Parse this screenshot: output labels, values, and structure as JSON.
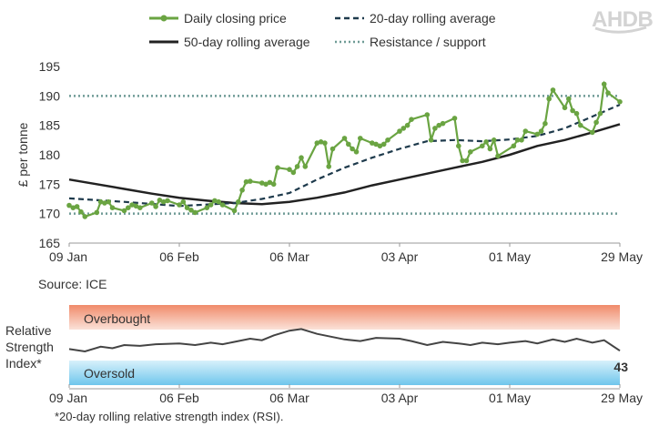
{
  "brand": {
    "name": "AHDB"
  },
  "legend": [
    {
      "key": "daily",
      "label": "Daily closing price"
    },
    {
      "key": "ma20",
      "label": "20-day rolling average"
    },
    {
      "key": "ma50",
      "label": "50-day rolling average"
    },
    {
      "key": "level",
      "label": "Resistance / support"
    }
  ],
  "colors": {
    "daily": "#6aa442",
    "ma20": "#1e3a4c",
    "ma50": "#222222",
    "level": "#6f9b96",
    "rsi": "#444444",
    "overbought": "#f1a58a",
    "oversold": "#8ed2f0"
  },
  "source": "Source: ICE",
  "footnote": "*20-day rolling relative strength index (RSI).",
  "chart_data": [
    {
      "type": "line",
      "ylabel": "£ per tonne",
      "ylim": [
        165,
        195
      ],
      "yticks": [
        "165",
        "170",
        "175",
        "180",
        "185",
        "190",
        "195"
      ],
      "xlim": [
        "09 Jan",
        "29 May"
      ],
      "xticks": [
        "09 Jan",
        "06 Feb",
        "06 Mar",
        "03 Apr",
        "01 May",
        "29 May"
      ],
      "grid": false,
      "legend_position": "top",
      "resistance_support": [
        170,
        190
      ],
      "series": [
        {
          "name": "Daily closing price",
          "points": [
            [
              "09 Jan",
              171.4
            ],
            [
              "10 Jan",
              171
            ],
            [
              "11 Jan",
              171.2
            ],
            [
              "12 Jan",
              170.3
            ],
            [
              "13 Jan",
              169.5
            ],
            [
              "16 Jan",
              170.2
            ],
            [
              "17 Jan",
              172
            ],
            [
              "18 Jan",
              171.8
            ],
            [
              "19 Jan",
              172
            ],
            [
              "20 Jan",
              171
            ],
            [
              "23 Jan",
              170.5
            ],
            [
              "24 Jan",
              171
            ],
            [
              "25 Jan",
              171.5
            ],
            [
              "26 Jan",
              171.3
            ],
            [
              "27 Jan",
              171
            ],
            [
              "30 Jan",
              171.8
            ],
            [
              "31 Jan",
              171.2
            ],
            [
              "01 Feb",
              172.3
            ],
            [
              "02 Feb",
              172
            ],
            [
              "03 Feb",
              172.2
            ],
            [
              "06 Feb",
              171.5
            ],
            [
              "07 Feb",
              172
            ],
            [
              "08 Feb",
              171
            ],
            [
              "09 Feb",
              170.6
            ],
            [
              "10 Feb",
              170.2
            ],
            [
              "13 Feb",
              171
            ],
            [
              "14 Feb",
              171.5
            ],
            [
              "15 Feb",
              172.2
            ],
            [
              "16 Feb",
              172
            ],
            [
              "17 Feb",
              171.5
            ],
            [
              "20 Feb",
              170.5
            ],
            [
              "21 Feb",
              172
            ],
            [
              "22 Feb",
              174
            ],
            [
              "23 Feb",
              175.4
            ],
            [
              "24 Feb",
              175.5
            ],
            [
              "27 Feb",
              175.2
            ],
            [
              "28 Feb",
              175
            ],
            [
              "01 Mar",
              175.3
            ],
            [
              "02 Mar",
              175
            ],
            [
              "03 Mar",
              177.8
            ],
            [
              "06 Mar",
              177.5
            ],
            [
              "07 Mar",
              177
            ],
            [
              "08 Mar",
              178
            ],
            [
              "09 Mar",
              179.5
            ],
            [
              "10 Mar",
              178
            ],
            [
              "13 Mar",
              182
            ],
            [
              "14 Mar",
              182.2
            ],
            [
              "15 Mar",
              182
            ],
            [
              "16 Mar",
              178
            ],
            [
              "17 Mar",
              181
            ],
            [
              "20 Mar",
              182.8
            ],
            [
              "21 Mar",
              181.8
            ],
            [
              "22 Mar",
              181
            ],
            [
              "23 Mar",
              180.5
            ],
            [
              "24 Mar",
              182.8
            ],
            [
              "27 Mar",
              182
            ],
            [
              "28 Mar",
              181.8
            ],
            [
              "29 Mar",
              181.5
            ],
            [
              "30 Mar",
              181.8
            ],
            [
              "31 Mar",
              182.5
            ],
            [
              "03 Apr",
              184
            ],
            [
              "04 Apr",
              184.5
            ],
            [
              "05 Apr",
              185
            ],
            [
              "06 Apr",
              186
            ],
            [
              "10 Apr",
              186.8
            ],
            [
              "11 Apr",
              182.5
            ],
            [
              "12 Apr",
              184.5
            ],
            [
              "13 Apr",
              185
            ],
            [
              "14 Apr",
              185.3
            ],
            [
              "17 Apr",
              186.2
            ],
            [
              "18 Apr",
              181.5
            ],
            [
              "19 Apr",
              179
            ],
            [
              "20 Apr",
              179
            ],
            [
              "21 Apr",
              180.5
            ],
            [
              "24 Apr",
              181.5
            ],
            [
              "25 Apr",
              182.2
            ],
            [
              "26 Apr",
              181
            ],
            [
              "27 Apr",
              182.5
            ],
            [
              "28 Apr",
              179.8
            ],
            [
              "02 May",
              181.5
            ],
            [
              "03 May",
              182.5
            ],
            [
              "04 May",
              182.5
            ],
            [
              "05 May",
              184
            ],
            [
              "08 May",
              183.5
            ],
            [
              "09 May",
              184
            ],
            [
              "10 May",
              185.3
            ],
            [
              "11 May",
              189.5
            ],
            [
              "12 May",
              191
            ],
            [
              "15 May",
              188
            ],
            [
              "16 May",
              189.5
            ],
            [
              "17 May",
              187.5
            ],
            [
              "18 May",
              187
            ],
            [
              "19 May",
              185
            ],
            [
              "22 May",
              183.8
            ],
            [
              "23 May",
              185.5
            ],
            [
              "24 May",
              187
            ],
            [
              "25 May",
              192
            ],
            [
              "26 May",
              190.5
            ],
            [
              "29 May",
              189
            ]
          ]
        },
        {
          "name": "20-day rolling average",
          "points": [
            [
              "09 Jan",
              172.6
            ],
            [
              "23 Jan",
              172.0
            ],
            [
              "06 Feb",
              171.3
            ],
            [
              "20 Feb",
              171.8
            ],
            [
              "27 Feb",
              172.5
            ],
            [
              "06 Mar",
              173.5
            ],
            [
              "13 Mar",
              175.8
            ],
            [
              "20 Mar",
              177.8
            ],
            [
              "27 Mar",
              179.5
            ],
            [
              "03 Apr",
              181.0
            ],
            [
              "10 Apr",
              182.3
            ],
            [
              "17 Apr",
              182.5
            ],
            [
              "24 Apr",
              182.3
            ],
            [
              "01 May",
              182.6
            ],
            [
              "08 May",
              183.2
            ],
            [
              "15 May",
              184.5
            ],
            [
              "22 May",
              186.5
            ],
            [
              "29 May",
              188.5
            ]
          ]
        },
        {
          "name": "50-day rolling average",
          "points": [
            [
              "09 Jan",
              175.8
            ],
            [
              "16 Jan",
              175.0
            ],
            [
              "23 Jan",
              174.2
            ],
            [
              "30 Jan",
              173.4
            ],
            [
              "06 Feb",
              172.7
            ],
            [
              "13 Feb",
              172.2
            ],
            [
              "20 Feb",
              171.8
            ],
            [
              "27 Feb",
              171.6
            ],
            [
              "06 Mar",
              172.0
            ],
            [
              "13 Mar",
              172.7
            ],
            [
              "20 Mar",
              173.6
            ],
            [
              "27 Mar",
              174.8
            ],
            [
              "03 Apr",
              175.8
            ],
            [
              "10 Apr",
              176.8
            ],
            [
              "17 Apr",
              177.8
            ],
            [
              "24 Apr",
              178.8
            ],
            [
              "01 May",
              180.0
            ],
            [
              "08 May",
              181.5
            ],
            [
              "15 May",
              182.5
            ],
            [
              "22 May",
              183.8
            ],
            [
              "29 May",
              185.2
            ]
          ]
        }
      ]
    },
    {
      "type": "line",
      "ylabel": "Relative Strength Index*",
      "ylim": [
        0,
        100
      ],
      "xlim": [
        "09 Jan",
        "29 May"
      ],
      "xticks": [
        "09 Jan",
        "06 Feb",
        "06 Mar",
        "03 Apr",
        "01 May",
        "29 May"
      ],
      "zones": [
        {
          "label": "Overbought",
          "from": 70,
          "to": 100
        },
        {
          "label": "Oversold",
          "from": 0,
          "to": 30
        }
      ],
      "latest_value": "43",
      "series": [
        {
          "name": "RSI",
          "points": [
            [
              "09 Jan",
              45
            ],
            [
              "13 Jan",
              42
            ],
            [
              "17 Jan",
              48
            ],
            [
              "20 Jan",
              46
            ],
            [
              "23 Jan",
              50
            ],
            [
              "27 Jan",
              49
            ],
            [
              "31 Jan",
              51
            ],
            [
              "06 Feb",
              52
            ],
            [
              "10 Feb",
              50
            ],
            [
              "14 Feb",
              53
            ],
            [
              "17 Feb",
              51
            ],
            [
              "20 Feb",
              54
            ],
            [
              "24 Feb",
              58
            ],
            [
              "27 Feb",
              56
            ],
            [
              "02 Mar",
              62
            ],
            [
              "06 Mar",
              68
            ],
            [
              "09 Mar",
              70
            ],
            [
              "13 Mar",
              64
            ],
            [
              "17 Mar",
              60
            ],
            [
              "20 Mar",
              57
            ],
            [
              "24 Mar",
              55
            ],
            [
              "28 Mar",
              59
            ],
            [
              "03 Apr",
              58
            ],
            [
              "06 Apr",
              55
            ],
            [
              "10 Apr",
              50
            ],
            [
              "14 Apr",
              54
            ],
            [
              "18 Apr",
              52
            ],
            [
              "21 Apr",
              50
            ],
            [
              "24 Apr",
              53
            ],
            [
              "28 Apr",
              51
            ],
            [
              "01 May",
              53
            ],
            [
              "05 May",
              55
            ],
            [
              "08 May",
              52
            ],
            [
              "12 May",
              57
            ],
            [
              "15 May",
              54
            ],
            [
              "18 May",
              58
            ],
            [
              "22 May",
              53
            ],
            [
              "25 May",
              56
            ],
            [
              "29 May",
              43
            ]
          ]
        }
      ]
    }
  ]
}
